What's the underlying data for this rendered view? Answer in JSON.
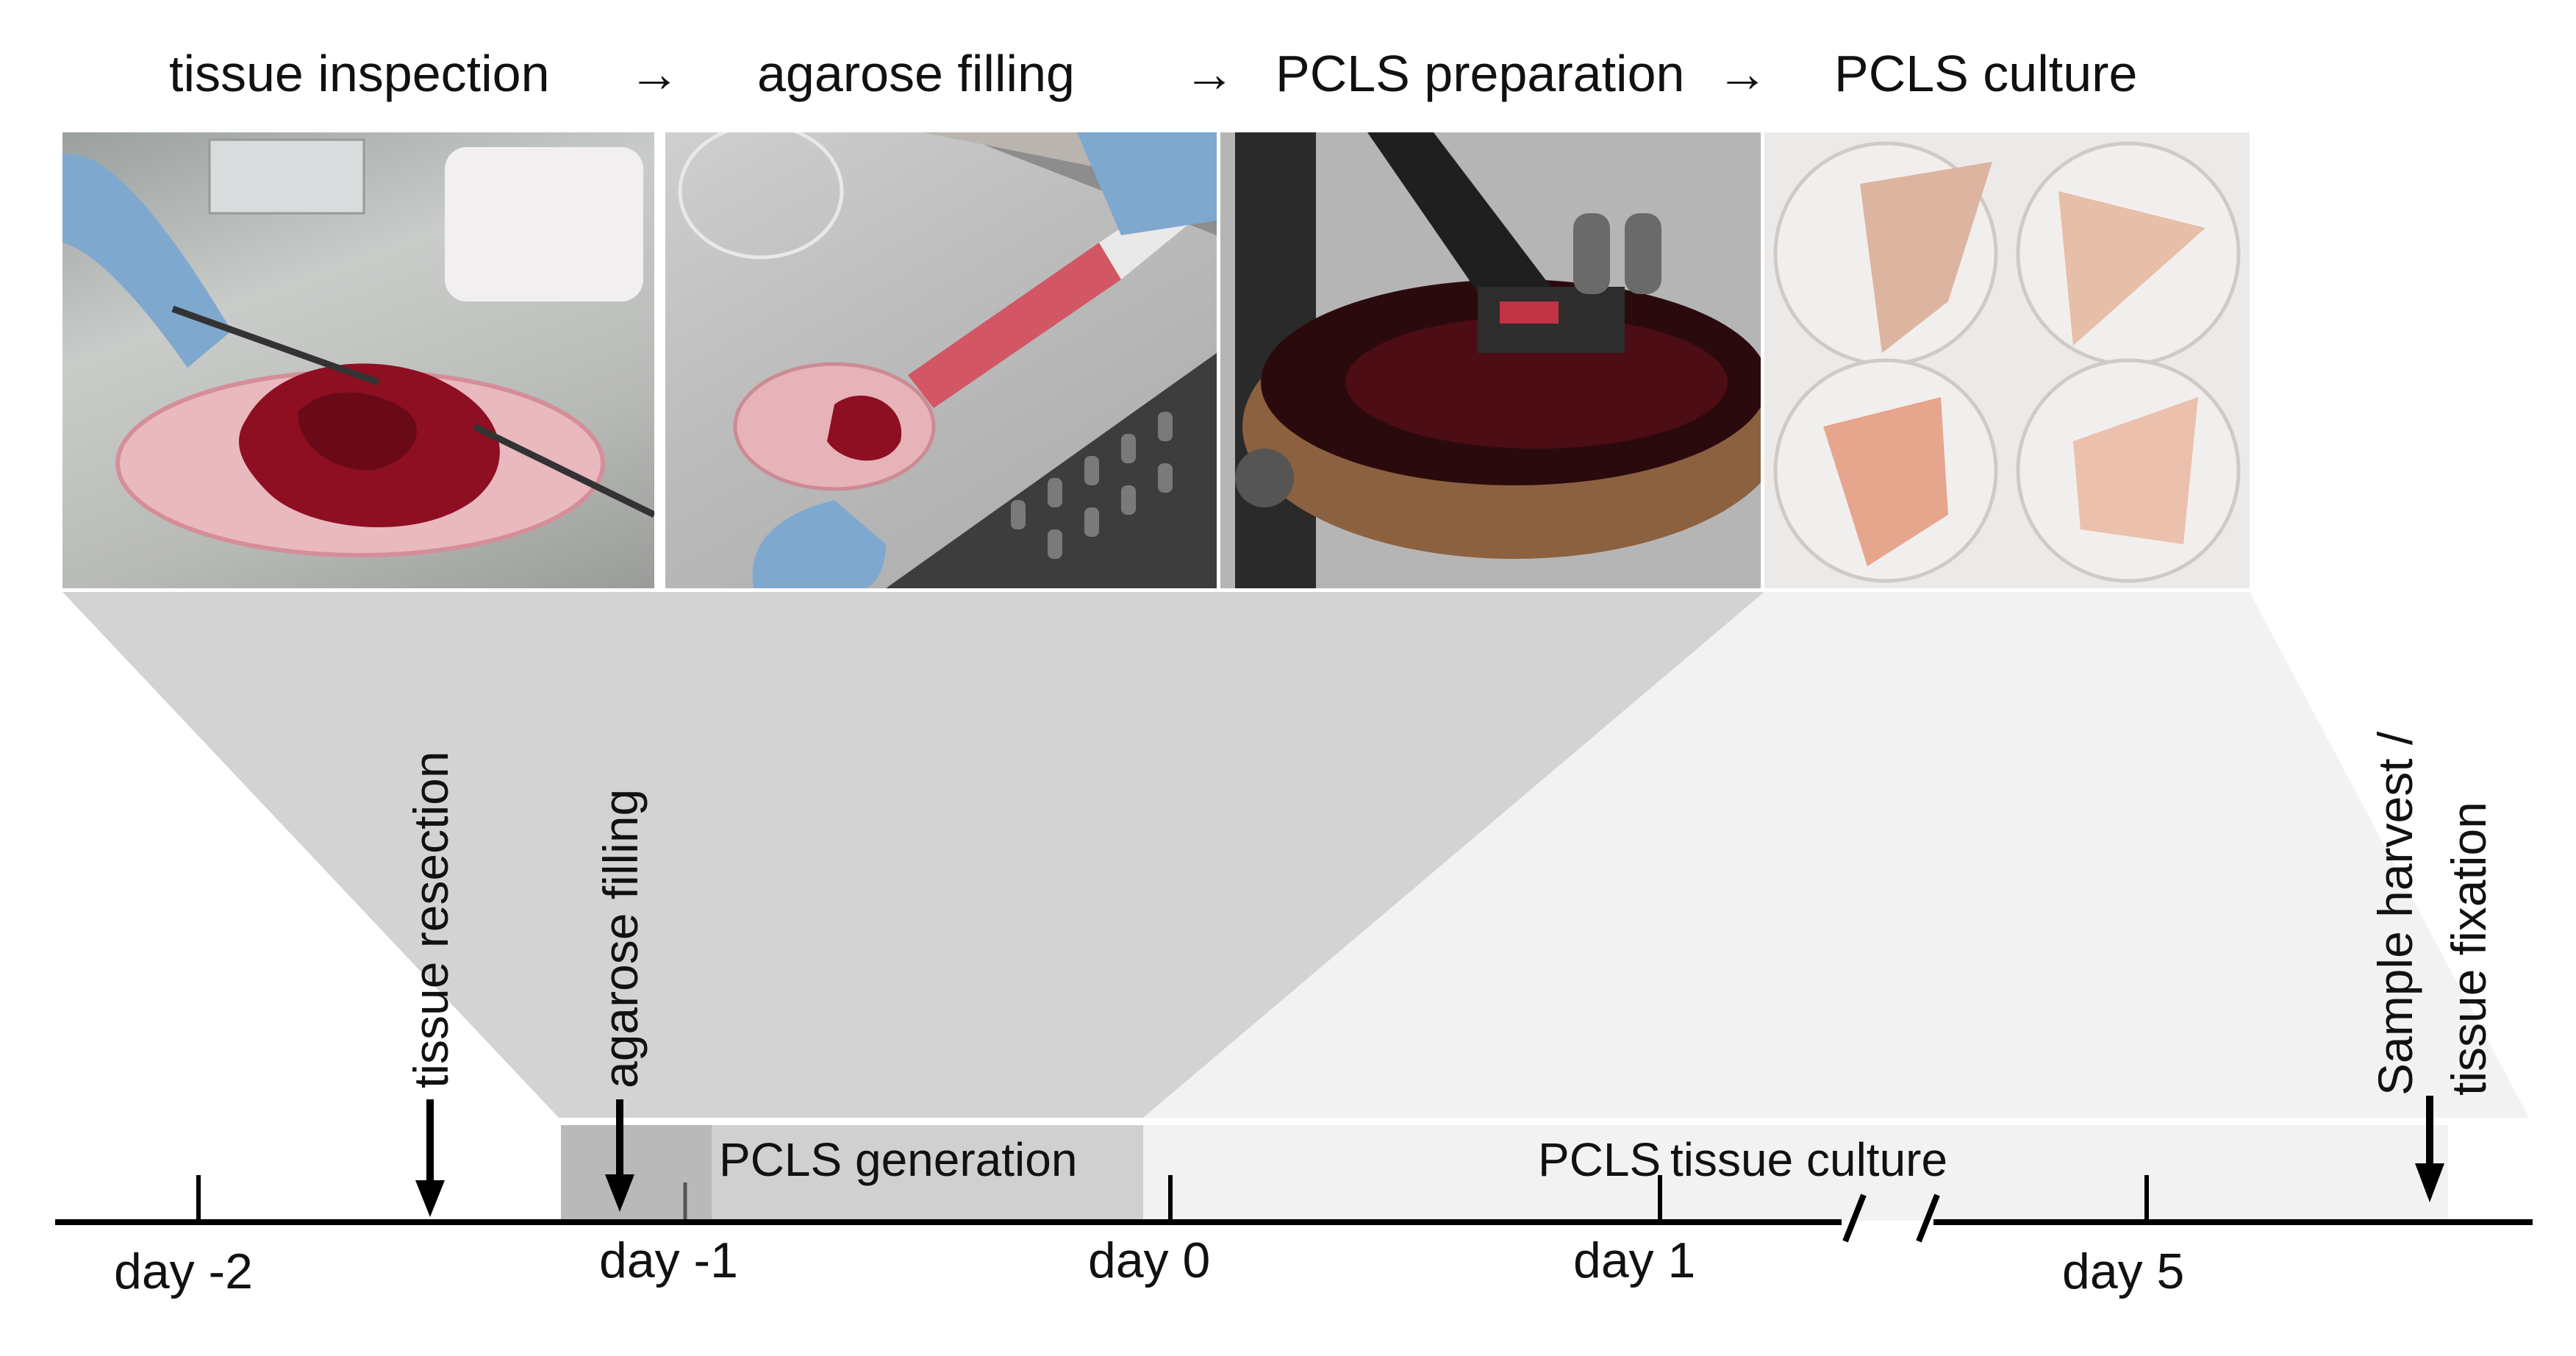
{
  "workflow": {
    "steps": [
      {
        "label": "tissue inspection"
      },
      {
        "label": "agarose filling"
      },
      {
        "label": "PCLS preparation"
      },
      {
        "label": "PCLS culture"
      }
    ],
    "arrow_glyph": "→"
  },
  "photos": [
    {
      "icon": "petri-dish-with-lung-tissue-photo"
    },
    {
      "icon": "syringe-agarose-filling-photo"
    },
    {
      "icon": "vibratome-slicer-photo"
    },
    {
      "icon": "cultured-pcls-dishes-photo"
    }
  ],
  "timeline": {
    "days": {
      "day_m2": "day -2",
      "day_m1": "day -1",
      "day_0": "day 0",
      "day_1": "day 1",
      "day_5": "day 5"
    },
    "phases": {
      "generation": "PCLS generation",
      "culture_a": "PCLS",
      "culture_b": "tissue culture"
    },
    "events": {
      "resection": "tissue resection",
      "filling": "agarose filling",
      "harvest_1": "Sample harvest /",
      "harvest_2": "tissue fixation"
    }
  },
  "colors": {
    "funnel_dark": "#d3d3d3",
    "funnel_light": "#f2f2f2",
    "generation_bar": "#d0d0d0",
    "generation_bar_dark": "#b9b9b9",
    "axis": "#000000"
  }
}
